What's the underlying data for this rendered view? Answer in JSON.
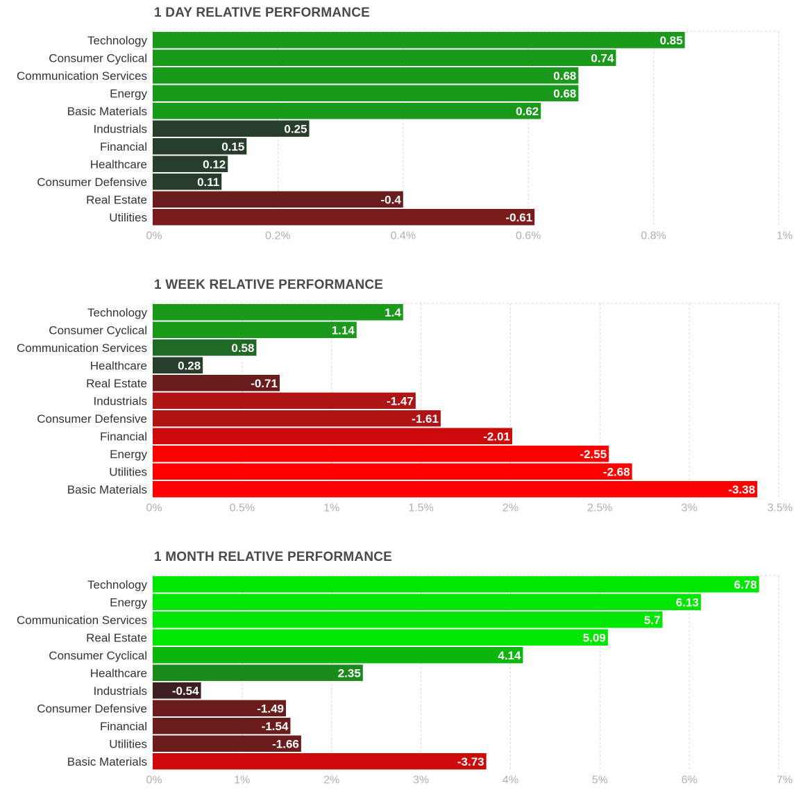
{
  "chart_data": [
    {
      "type": "bar",
      "orientation": "horizontal",
      "title": "1 DAY RELATIVE PERFORMANCE",
      "categories": [
        "Technology",
        "Consumer Cyclical",
        "Communication Services",
        "Energy",
        "Basic Materials",
        "Industrials",
        "Financial",
        "Healthcare",
        "Consumer Defensive",
        "Real Estate",
        "Utilities"
      ],
      "values": [
        0.85,
        0.74,
        0.68,
        0.68,
        0.62,
        0.25,
        0.15,
        0.12,
        0.11,
        -0.4,
        -0.61
      ],
      "value_labels": [
        "0.85",
        "0.74",
        "0.68",
        "0.68",
        "0.62",
        "0.25",
        "0.15",
        "0.12",
        "0.11",
        "-0.4",
        "-0.61"
      ],
      "colors": [
        "#1a991a",
        "#1a991a",
        "#1a991a",
        "#1a991a",
        "#1a991a",
        "#283d2b",
        "#283d2b",
        "#283d2b",
        "#283d2b",
        "#6b1d1d",
        "#7a1c1c"
      ],
      "xlim": [
        0,
        1
      ],
      "ticks": [
        0,
        0.2,
        0.4,
        0.6,
        0.8,
        1
      ],
      "tick_labels": [
        "0%",
        "0.2%",
        "0.4%",
        "0.6%",
        "0.8%",
        "1%"
      ],
      "xlabel": "",
      "ylabel": "",
      "grid": true
    },
    {
      "type": "bar",
      "orientation": "horizontal",
      "title": "1 WEEK RELATIVE PERFORMANCE",
      "categories": [
        "Technology",
        "Consumer Cyclical",
        "Communication Services",
        "Healthcare",
        "Real Estate",
        "Industrials",
        "Consumer Defensive",
        "Financial",
        "Energy",
        "Utilities",
        "Basic Materials"
      ],
      "values": [
        1.4,
        1.14,
        0.58,
        0.28,
        -0.71,
        -1.47,
        -1.61,
        -2.01,
        -2.55,
        -2.68,
        -3.38
      ],
      "value_labels": [
        "1.4",
        "1.14",
        "0.58",
        "0.28",
        "-0.71",
        "-1.47",
        "-1.61",
        "-2.01",
        "-2.55",
        "-2.68",
        "-3.38"
      ],
      "colors": [
        "#1a991a",
        "#1a991a",
        "#216a25",
        "#283d2b",
        "#6b1d1d",
        "#b01313",
        "#b01313",
        "#cc0a0a",
        "#ff0000",
        "#ff0000",
        "#ff0000"
      ],
      "xlim": [
        0,
        3.5
      ],
      "ticks": [
        0,
        0.5,
        1,
        1.5,
        2,
        2.5,
        3,
        3.5
      ],
      "tick_labels": [
        "0%",
        "0.5%",
        "1%",
        "1.5%",
        "2%",
        "2.5%",
        "3%",
        "3.5%"
      ],
      "xlabel": "",
      "ylabel": "",
      "grid": true
    },
    {
      "type": "bar",
      "orientation": "horizontal",
      "title": "1 MONTH RELATIVE PERFORMANCE",
      "categories": [
        "Technology",
        "Energy",
        "Communication Services",
        "Real Estate",
        "Consumer Cyclical",
        "Healthcare",
        "Industrials",
        "Consumer Defensive",
        "Financial",
        "Utilities",
        "Basic Materials"
      ],
      "values": [
        6.78,
        6.13,
        5.7,
        5.09,
        4.14,
        2.35,
        -0.54,
        -1.49,
        -1.54,
        -1.66,
        -3.73
      ],
      "value_labels": [
        "6.78",
        "6.13",
        "5.7",
        "5.09",
        "4.14",
        "2.35",
        "-0.54",
        "-1.49",
        "-1.54",
        "-1.66",
        "-3.73"
      ],
      "colors": [
        "#00e600",
        "#00e600",
        "#00e600",
        "#00e600",
        "#0db50d",
        "#1a8a1a",
        "#3d1f22",
        "#6b1d1d",
        "#6b1d1d",
        "#6b1d1d",
        "#cc0a0a"
      ],
      "xlim": [
        0,
        7
      ],
      "ticks": [
        0,
        1,
        2,
        3,
        4,
        5,
        6,
        7
      ],
      "tick_labels": [
        "0%",
        "1%",
        "2%",
        "3%",
        "4%",
        "5%",
        "6%",
        "7%"
      ],
      "xlabel": "",
      "ylabel": "",
      "grid": true
    }
  ]
}
